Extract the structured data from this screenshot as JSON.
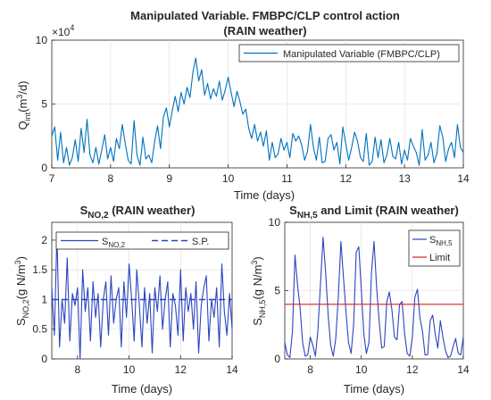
{
  "colors": {
    "series": "#0072BD",
    "series_dark": "#2B45C0",
    "limit": "#E0201B",
    "axis": "#262626",
    "grid": "#dcdcdc"
  },
  "chart_data": [
    {
      "type": "line",
      "title_line1": "Manipulated Variable. FMBPC/CLP control action",
      "title_line2": "(RAIN weather)",
      "xlabel": "Time (days)",
      "ylabel_main": "Q",
      "ylabel_sub": "int",
      "ylabel_tail": "(m",
      "ylabel_sup": "3",
      "ylabel_end": "/d)",
      "exponent_base": "×10",
      "exponent_power": "4",
      "xlim": [
        7,
        14
      ],
      "ylim": [
        0,
        10
      ],
      "xticks": [
        "7",
        "8",
        "9",
        "10",
        "11",
        "12",
        "13",
        "14"
      ],
      "yticks": [
        "0",
        "5",
        "10"
      ],
      "grid": true,
      "legend_position": "top-right",
      "series": [
        {
          "name": "Manipulated Variable (FMBPC/CLP)",
          "x": [
            7.0,
            7.05,
            7.1,
            7.15,
            7.2,
            7.25,
            7.3,
            7.35,
            7.4,
            7.45,
            7.5,
            7.55,
            7.6,
            7.65,
            7.7,
            7.75,
            7.8,
            7.85,
            7.9,
            7.95,
            8.0,
            8.05,
            8.1,
            8.15,
            8.2,
            8.25,
            8.3,
            8.35,
            8.4,
            8.45,
            8.5,
            8.55,
            8.6,
            8.65,
            8.7,
            8.75,
            8.8,
            8.85,
            8.9,
            8.95,
            9.0,
            9.05,
            9.1,
            9.15,
            9.2,
            9.25,
            9.3,
            9.35,
            9.4,
            9.45,
            9.5,
            9.55,
            9.6,
            9.65,
            9.7,
            9.75,
            9.8,
            9.85,
            9.9,
            9.95,
            10.0,
            10.05,
            10.1,
            10.15,
            10.2,
            10.25,
            10.3,
            10.35,
            10.4,
            10.45,
            10.5,
            10.55,
            10.6,
            10.65,
            10.7,
            10.75,
            10.8,
            10.85,
            10.9,
            10.95,
            11.0,
            11.05,
            11.1,
            11.15,
            11.2,
            11.25,
            11.3,
            11.35,
            11.4,
            11.45,
            11.5,
            11.55,
            11.6,
            11.65,
            11.7,
            11.75,
            11.8,
            11.85,
            11.9,
            11.95,
            12.0,
            12.05,
            12.1,
            12.15,
            12.2,
            12.25,
            12.3,
            12.35,
            12.4,
            12.45,
            12.5,
            12.55,
            12.6,
            12.65,
            12.7,
            12.75,
            12.8,
            12.85,
            12.9,
            12.95,
            13.0,
            13.05,
            13.1,
            13.15,
            13.2,
            13.25,
            13.3,
            13.35,
            13.4,
            13.45,
            13.5,
            13.55,
            13.6,
            13.65,
            13.7,
            13.75,
            13.8,
            13.85,
            13.9,
            13.95,
            14.0
          ],
          "values": [
            2.5,
            3.2,
            0.6,
            2.8,
            0.4,
            1.6,
            0.2,
            0.8,
            2.2,
            0.5,
            3.1,
            1.2,
            3.8,
            1.0,
            0.4,
            1.6,
            0.3,
            1.4,
            2.6,
            0.7,
            1.6,
            0.5,
            2.3,
            1.5,
            3.4,
            1.9,
            0.6,
            0.3,
            3.7,
            1.0,
            0.2,
            2.4,
            0.7,
            1.0,
            0.4,
            2.1,
            3.3,
            1.5,
            4.0,
            4.7,
            3.2,
            4.5,
            5.6,
            4.4,
            5.9,
            5.0,
            6.3,
            5.5,
            7.5,
            8.6,
            6.8,
            7.7,
            5.7,
            6.6,
            5.4,
            6.2,
            5.6,
            6.8,
            5.3,
            6.1,
            7.1,
            5.9,
            4.8,
            6.0,
            5.2,
            4.2,
            4.6,
            3.1,
            2.3,
            3.4,
            2.1,
            2.8,
            1.7,
            2.9,
            0.6,
            2.0,
            0.8,
            1.1,
            2.3,
            1.4,
            2.0,
            0.8,
            2.7,
            2.1,
            2.5,
            1.8,
            0.6,
            1.3,
            3.4,
            1.6,
            0.6,
            2.4,
            0.4,
            0.5,
            2.3,
            2.6,
            1.4,
            2.0,
            0.3,
            3.2,
            1.9,
            0.6,
            1.6,
            2.8,
            2.1,
            0.8,
            0.5,
            2.7,
            0.2,
            0.5,
            2.4,
            0.8,
            2.2,
            0.4,
            1.0,
            2.3,
            0.9,
            0.7,
            2.0,
            0.3,
            1.4,
            0.6,
            2.3,
            1.7,
            1.2,
            0.2,
            3.0,
            0.6,
            1.0,
            2.0,
            0.4,
            1.1,
            3.3,
            2.4,
            0.5,
            1.5,
            2.0,
            0.8,
            3.4,
            1.6,
            1.2
          ]
        }
      ]
    },
    {
      "type": "line",
      "title_main": "S",
      "title_sub": "NO,2",
      "title_rest": " (RAIN weather)",
      "xlabel": "Time (days)",
      "ylabel_main": "S",
      "ylabel_sub": "NO,2",
      "ylabel_rest": "(g N/m",
      "ylabel_sup": "3",
      "ylabel_end": ")",
      "xlim": [
        7,
        14
      ],
      "ylim": [
        0,
        2.3
      ],
      "xticks": [
        "8",
        "10",
        "12",
        "14"
      ],
      "yticks": [
        "0",
        "0.5",
        "1",
        "1.5",
        "2"
      ],
      "grid": true,
      "legend_position": "top",
      "series": [
        {
          "name_main": "S",
          "name_sub": "NO,2",
          "x": [
            7.0,
            7.1,
            7.2,
            7.3,
            7.4,
            7.5,
            7.6,
            7.7,
            7.8,
            7.9,
            8.0,
            8.1,
            8.2,
            8.3,
            8.4,
            8.5,
            8.6,
            8.7,
            8.8,
            8.9,
            9.0,
            9.1,
            9.2,
            9.3,
            9.4,
            9.5,
            9.6,
            9.7,
            9.8,
            9.9,
            10.0,
            10.1,
            10.2,
            10.3,
            10.4,
            10.5,
            10.6,
            10.7,
            10.8,
            10.9,
            11.0,
            11.1,
            11.2,
            11.3,
            11.4,
            11.5,
            11.6,
            11.7,
            11.8,
            11.9,
            12.0,
            12.1,
            12.2,
            12.3,
            12.4,
            12.5,
            12.6,
            12.7,
            12.8,
            12.9,
            13.0,
            13.1,
            13.2,
            13.3,
            13.4,
            13.5,
            13.6,
            13.7,
            13.8,
            13.9,
            14.0
          ],
          "values": [
            1.2,
            0.4,
            2.1,
            0.2,
            1.0,
            0.6,
            1.7,
            0.3,
            1.1,
            0.9,
            1.2,
            0.0,
            1.5,
            0.8,
            1.2,
            0.3,
            1.3,
            0.7,
            1.1,
            0.2,
            1.0,
            1.3,
            0.4,
            1.4,
            0.6,
            1.0,
            1.2,
            0.2,
            1.3,
            0.7,
            1.6,
            1.0,
            0.3,
            1.5,
            0.9,
            0.2,
            1.2,
            0.6,
            1.1,
            0.1,
            1.2,
            0.8,
            1.4,
            0.5,
            1.0,
            1.3,
            0.2,
            1.1,
            0.9,
            0.4,
            1.5,
            0.3,
            1.2,
            0.8,
            1.1,
            0.5,
            1.3,
            0.1,
            0.9,
            1.2,
            1.4,
            0.3,
            1.0,
            0.7,
            1.2,
            0.2,
            1.6,
            0.8,
            0.4,
            1.1,
            0.5
          ]
        },
        {
          "name": "S.P.",
          "x": [
            7,
            14
          ],
          "values": [
            1,
            1
          ]
        }
      ]
    },
    {
      "type": "line",
      "title_main": "S",
      "title_sub": "NH,5",
      "title_rest": " and Limit (RAIN weather)",
      "xlabel": "Time (days)",
      "ylabel_main": "S",
      "ylabel_sub": "NH,5",
      "ylabel_rest": "(g N/m",
      "ylabel_sup": "3",
      "ylabel_end": ")",
      "xlim": [
        7,
        14
      ],
      "ylim": [
        0,
        10
      ],
      "xticks": [
        "8",
        "10",
        "12",
        "14"
      ],
      "yticks": [
        "0",
        "5",
        "10"
      ],
      "grid": true,
      "legend_position": "top-right",
      "series": [
        {
          "name_main": "S",
          "name_sub": "NH,5",
          "x": [
            7.0,
            7.1,
            7.2,
            7.3,
            7.4,
            7.5,
            7.6,
            7.7,
            7.8,
            7.9,
            8.0,
            8.1,
            8.2,
            8.3,
            8.4,
            8.5,
            8.6,
            8.7,
            8.8,
            8.9,
            9.0,
            9.1,
            9.2,
            9.3,
            9.4,
            9.5,
            9.6,
            9.7,
            9.8,
            9.9,
            10.0,
            10.1,
            10.2,
            10.3,
            10.4,
            10.5,
            10.6,
            10.7,
            10.8,
            10.9,
            11.0,
            11.1,
            11.2,
            11.3,
            11.4,
            11.5,
            11.6,
            11.7,
            11.8,
            11.9,
            12.0,
            12.1,
            12.2,
            12.3,
            12.4,
            12.5,
            12.6,
            12.7,
            12.8,
            12.9,
            13.0,
            13.1,
            13.2,
            13.3,
            13.4,
            13.5,
            13.6,
            13.7,
            13.8,
            13.9,
            14.0
          ],
          "values": [
            1.2,
            0.3,
            0.1,
            2.0,
            7.6,
            5.4,
            3.8,
            1.2,
            0.2,
            0.3,
            1.6,
            1.0,
            0.2,
            2.1,
            5.5,
            8.9,
            6.4,
            3.2,
            1.0,
            0.2,
            1.5,
            4.6,
            8.6,
            6.0,
            3.4,
            1.2,
            0.4,
            2.5,
            7.8,
            8.2,
            5.1,
            1.8,
            0.4,
            1.2,
            6.3,
            8.6,
            5.2,
            2.8,
            0.8,
            0.9,
            4.2,
            4.9,
            3.6,
            1.6,
            1.4,
            4.0,
            4.2,
            1.8,
            0.4,
            0.2,
            1.6,
            4.5,
            5.1,
            3.0,
            2.0,
            0.3,
            0.3,
            2.8,
            3.2,
            1.8,
            0.8,
            2.8,
            1.6,
            0.6,
            0.1,
            0.2,
            0.9,
            1.5,
            0.4,
            0.3,
            1.6
          ]
        },
        {
          "name": "Limit",
          "x": [
            7,
            14
          ],
          "values": [
            4,
            4
          ]
        }
      ]
    }
  ]
}
